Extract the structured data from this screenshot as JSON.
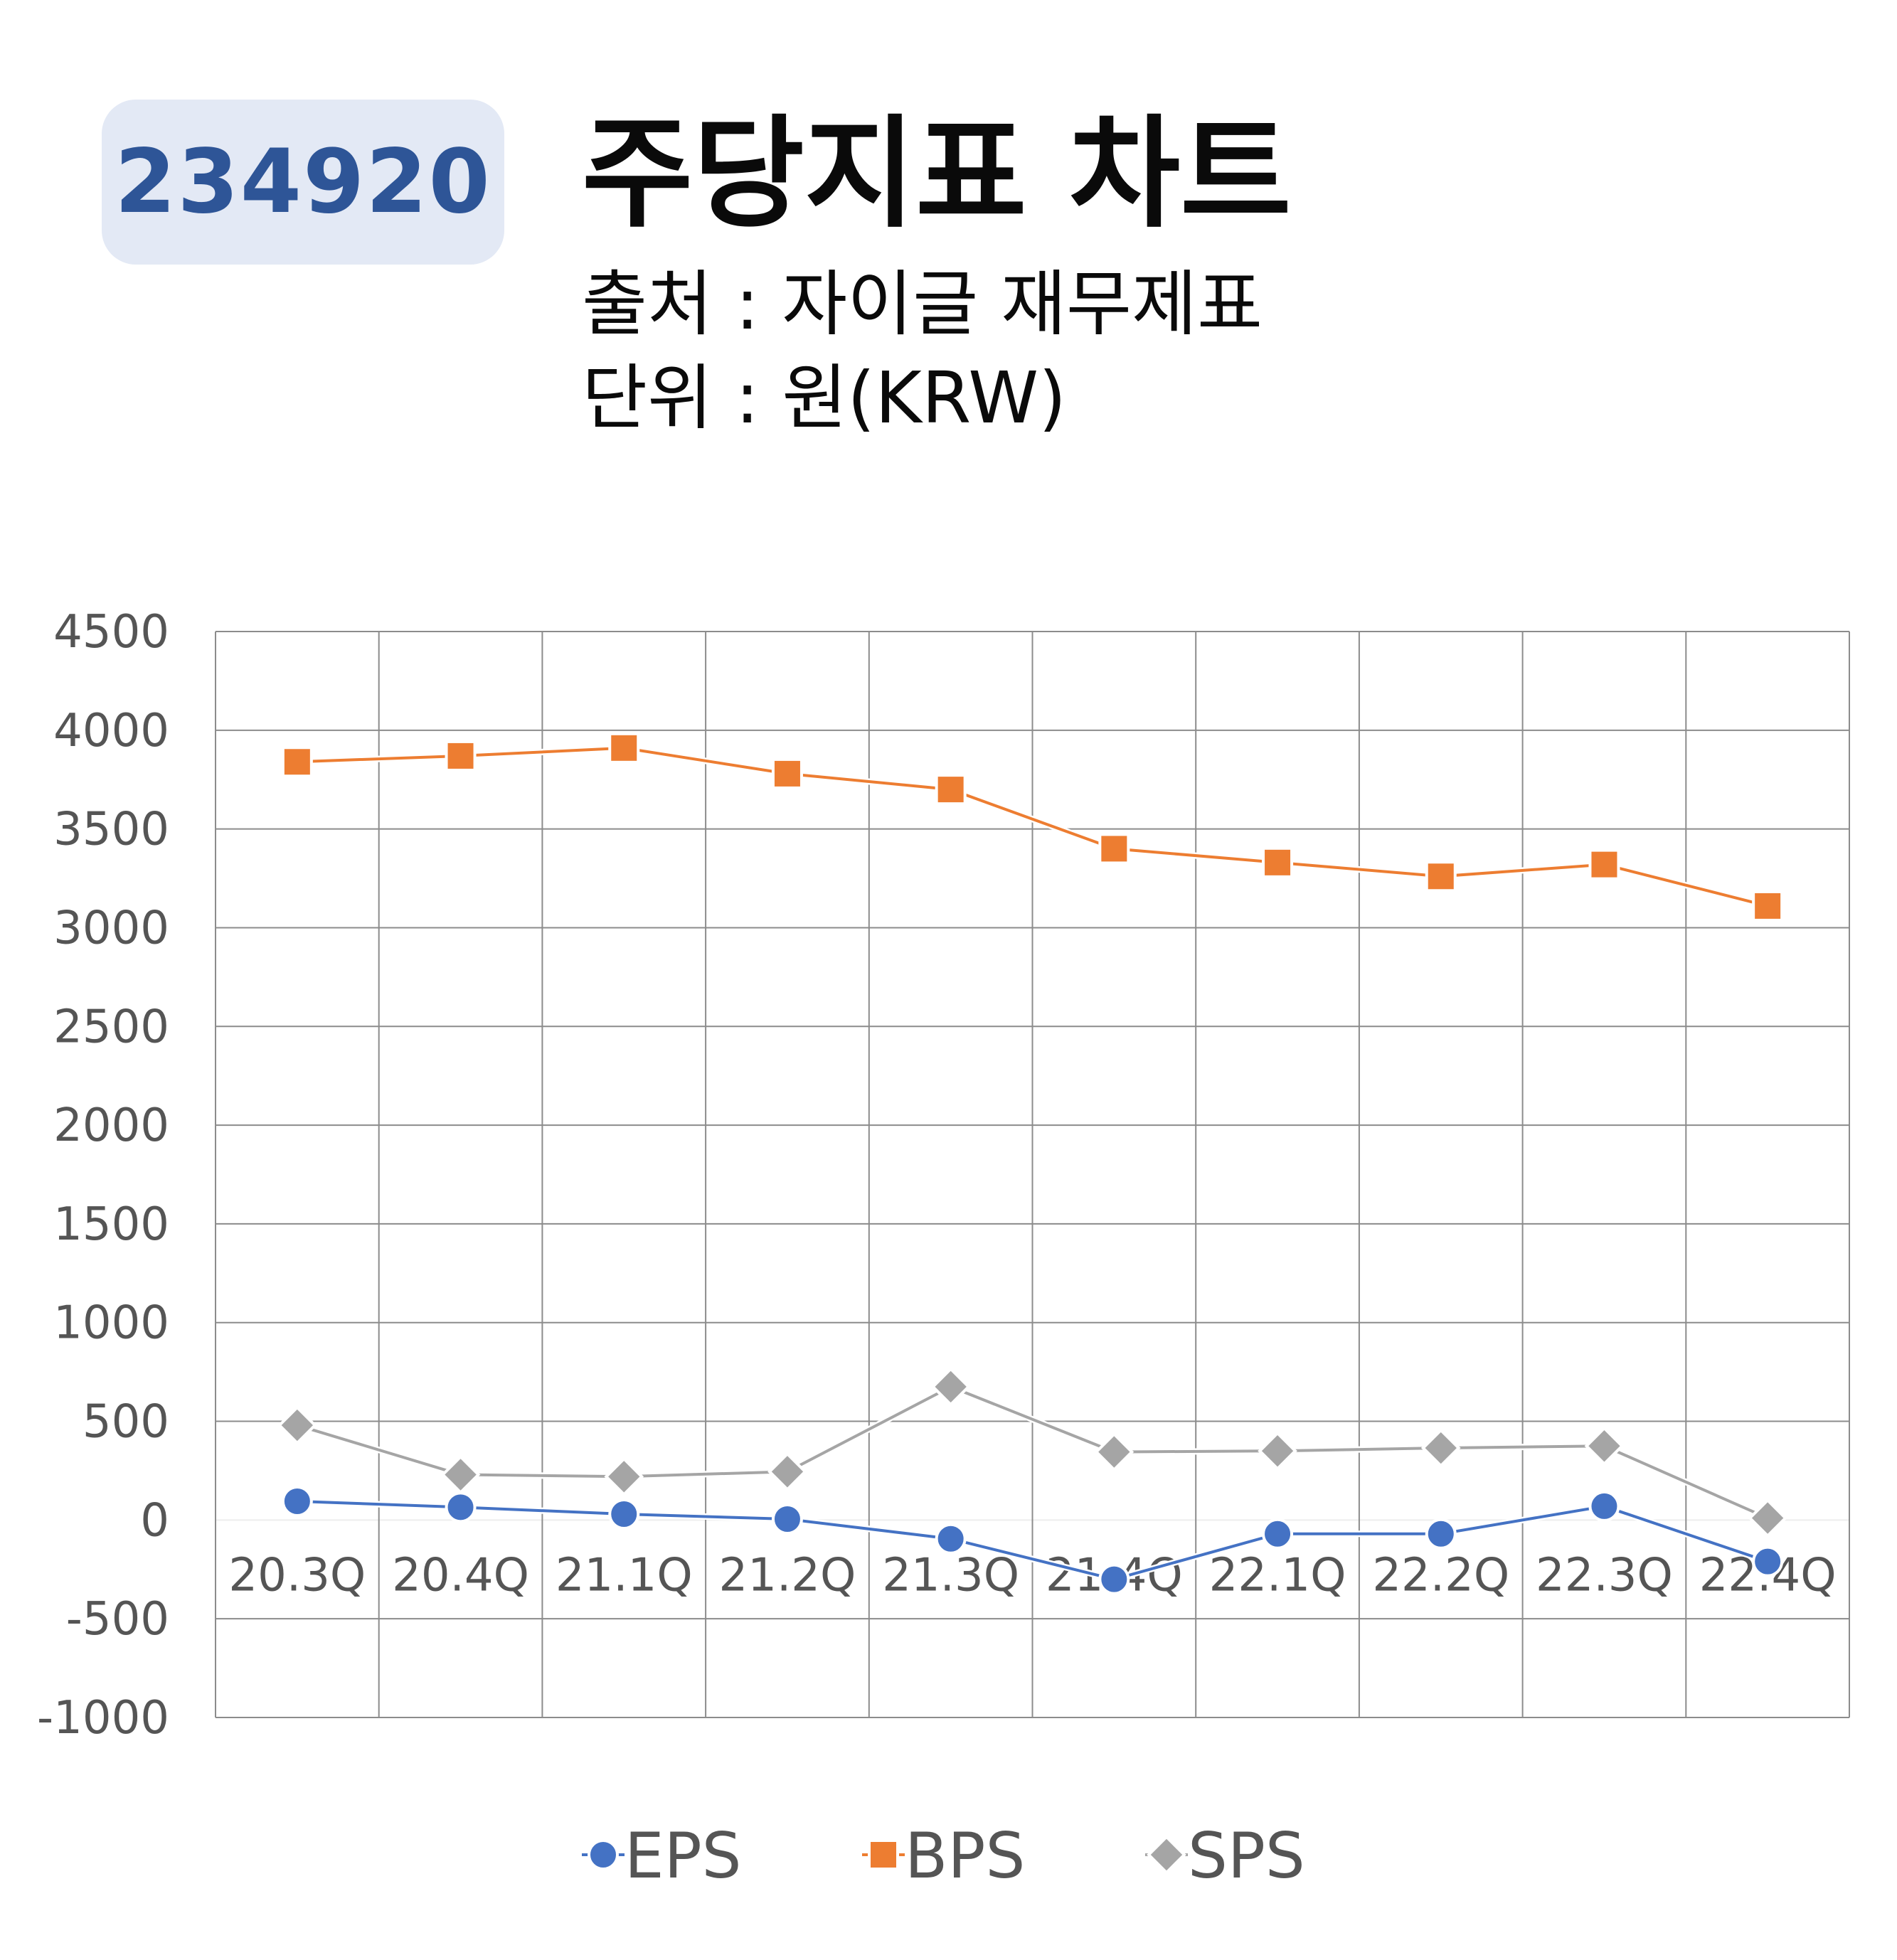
{
  "header": {
    "stock_code": "234920",
    "title": "주당지표 차트",
    "source": "출처 : 자이글 재무제표",
    "unit": "단위 : 원(KRW)"
  },
  "colors": {
    "EPS": "#4472c4",
    "BPS": "#ed7d31",
    "SPS": "#a5a5a5",
    "badge_bg": "#e3e9f5",
    "badge_text": "#2e5597",
    "grid": "#8c8c8c"
  },
  "chart_data": {
    "type": "line",
    "categories": [
      "20.3Q",
      "20.4Q",
      "21.1Q",
      "21.2Q",
      "21.3Q",
      "21.4Q",
      "22.1Q",
      "22.2Q",
      "22.3Q",
      "22.4Q"
    ],
    "ylim": [
      -1000,
      4500
    ],
    "yticks": [
      4500,
      4000,
      3500,
      3000,
      2500,
      2000,
      1500,
      1000,
      500,
      0,
      -500,
      -1000
    ],
    "grid": true,
    "legend_position": "bottom",
    "series": [
      {
        "name": "EPS",
        "marker": "circle",
        "values": [
          95,
          65,
          30,
          5,
          -95,
          -300,
          -70,
          -70,
          70,
          -210
        ]
      },
      {
        "name": "BPS",
        "marker": "square",
        "values": [
          3840,
          3870,
          3910,
          3780,
          3700,
          3400,
          3330,
          3260,
          3320,
          3110
        ]
      },
      {
        "name": "SPS",
        "marker": "diamond",
        "values": [
          480,
          230,
          220,
          245,
          675,
          345,
          350,
          365,
          375,
          10
        ]
      }
    ]
  }
}
